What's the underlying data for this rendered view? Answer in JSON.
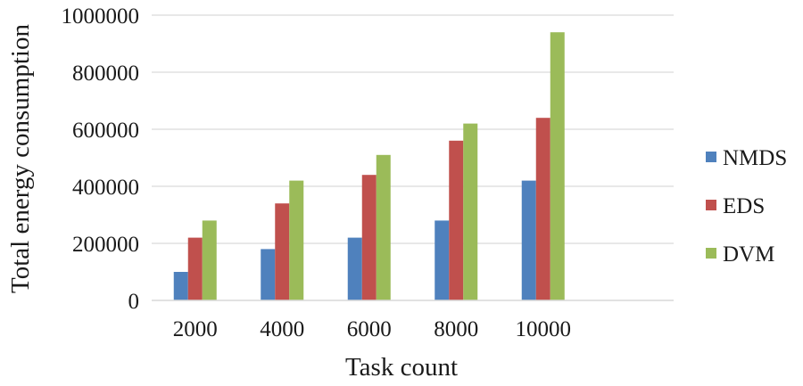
{
  "chart_data": {
    "type": "bar",
    "title": "",
    "xlabel": "Task count",
    "ylabel": "Total energy consumption",
    "categories": [
      "2000",
      "4000",
      "6000",
      "8000",
      "10000"
    ],
    "series": [
      {
        "name": "NMDS",
        "color": "#4f81bd",
        "values": [
          100000,
          180000,
          220000,
          280000,
          420000
        ]
      },
      {
        "name": "EDS",
        "color": "#c0504d",
        "values": [
          220000,
          340000,
          440000,
          560000,
          640000
        ]
      },
      {
        "name": "DVM",
        "color": "#9bbb59",
        "values": [
          280000,
          420000,
          510000,
          620000,
          940000
        ]
      }
    ],
    "ylim": [
      0,
      1000000
    ],
    "yticks": [
      "0",
      "200000",
      "400000",
      "600000",
      "800000",
      "1000000"
    ],
    "grid": true,
    "legend_position": "right"
  }
}
